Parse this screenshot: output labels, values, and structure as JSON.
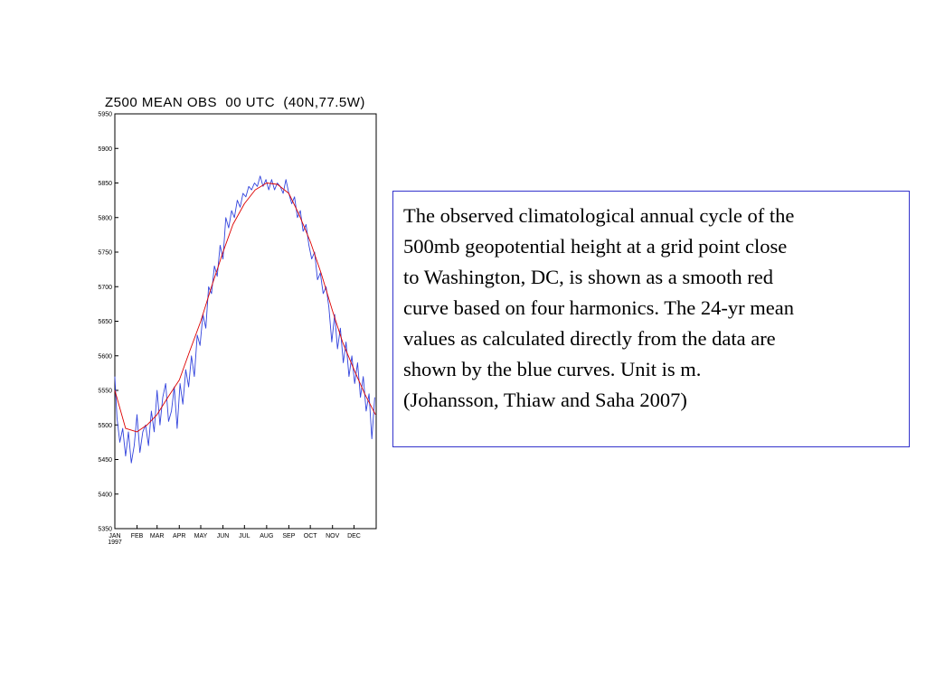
{
  "chart_data": {
    "type": "line",
    "title": "Z500 MEAN OBS  00 UTC  (40N,77.5W)",
    "xlabel": "",
    "ylabel": "",
    "ylim": [
      5350,
      5950
    ],
    "yticks": [
      5350,
      5400,
      5450,
      5500,
      5550,
      5600,
      5650,
      5700,
      5750,
      5800,
      5850,
      5900,
      5950
    ],
    "x_domain": [
      "1997-01-01",
      "1998-01-01"
    ],
    "xtick_labels": [
      "JAN",
      "FEB",
      "MAR",
      "APR",
      "MAY",
      "JUN",
      "JUL",
      "AUG",
      "SEP",
      "OCT",
      "NOV",
      "DEC"
    ],
    "xtick_year": "1997",
    "grid": false,
    "legend": "none",
    "series": [
      {
        "color": "#3344dd",
        "x": [
          "1997-01-01",
          "1997-01-04",
          "1997-01-08",
          "1997-01-12",
          "1997-01-16",
          "1997-01-20",
          "1997-01-24",
          "1997-01-28",
          "1997-02-01",
          "1997-02-05",
          "1997-02-09",
          "1997-02-13",
          "1997-02-17",
          "1997-02-21",
          "1997-02-25",
          "1997-03-01",
          "1997-03-05",
          "1997-03-09",
          "1997-03-13",
          "1997-03-17",
          "1997-03-21",
          "1997-03-25",
          "1997-03-29",
          "1997-04-02",
          "1997-04-06",
          "1997-04-10",
          "1997-04-14",
          "1997-04-18",
          "1997-04-22",
          "1997-04-26",
          "1997-04-30",
          "1997-05-04",
          "1997-05-08",
          "1997-05-12",
          "1997-05-16",
          "1997-05-20",
          "1997-05-24",
          "1997-05-28",
          "1997-06-01",
          "1997-06-05",
          "1997-06-09",
          "1997-06-13",
          "1997-06-17",
          "1997-06-21",
          "1997-06-25",
          "1997-06-29",
          "1997-07-03",
          "1997-07-07",
          "1997-07-11",
          "1997-07-15",
          "1997-07-19",
          "1997-07-23",
          "1997-07-27",
          "1997-07-31",
          "1997-08-04",
          "1997-08-08",
          "1997-08-12",
          "1997-08-16",
          "1997-08-20",
          "1997-08-24",
          "1997-08-28",
          "1997-09-01",
          "1997-09-05",
          "1997-09-09",
          "1997-09-13",
          "1997-09-17",
          "1997-09-21",
          "1997-09-25",
          "1997-09-29",
          "1997-10-03",
          "1997-10-07",
          "1997-10-11",
          "1997-10-15",
          "1997-10-19",
          "1997-10-23",
          "1997-10-27",
          "1997-10-31",
          "1997-11-04",
          "1997-11-08",
          "1997-11-12",
          "1997-11-16",
          "1997-11-20",
          "1997-11-24",
          "1997-11-28",
          "1997-12-02",
          "1997-12-06",
          "1997-12-10",
          "1997-12-14",
          "1997-12-18",
          "1997-12-22",
          "1997-12-26",
          "1997-12-30"
        ],
        "values": [
          5570,
          5510,
          5475,
          5495,
          5455,
          5490,
          5445,
          5470,
          5515,
          5460,
          5490,
          5500,
          5470,
          5520,
          5490,
          5550,
          5500,
          5540,
          5560,
          5505,
          5520,
          5555,
          5495,
          5560,
          5530,
          5580,
          5555,
          5600,
          5570,
          5630,
          5615,
          5660,
          5640,
          5700,
          5690,
          5730,
          5715,
          5760,
          5740,
          5800,
          5785,
          5810,
          5800,
          5825,
          5815,
          5835,
          5830,
          5845,
          5840,
          5850,
          5845,
          5860,
          5845,
          5855,
          5840,
          5855,
          5840,
          5850,
          5845,
          5835,
          5855,
          5835,
          5820,
          5830,
          5800,
          5810,
          5780,
          5790,
          5760,
          5740,
          5750,
          5710,
          5720,
          5690,
          5700,
          5670,
          5620,
          5660,
          5610,
          5640,
          5590,
          5620,
          5570,
          5600,
          5560,
          5590,
          5540,
          5570,
          5520,
          5545,
          5480,
          5540
        ]
      },
      {
        "color": "#dd0000",
        "x": [
          "1997-01-01",
          "1997-01-16",
          "1997-02-01",
          "1997-02-15",
          "1997-03-01",
          "1997-03-16",
          "1997-04-01",
          "1997-04-15",
          "1997-05-01",
          "1997-05-16",
          "1997-06-01",
          "1997-06-15",
          "1997-07-01",
          "1997-07-16",
          "1997-08-01",
          "1997-08-16",
          "1997-09-01",
          "1997-09-15",
          "1997-10-01",
          "1997-10-16",
          "1997-11-01",
          "1997-11-15",
          "1997-12-01",
          "1997-12-16",
          "1997-12-31"
        ],
        "values": [
          5550,
          5495,
          5490,
          5500,
          5515,
          5540,
          5565,
          5605,
          5650,
          5700,
          5750,
          5790,
          5820,
          5840,
          5850,
          5848,
          5835,
          5805,
          5765,
          5720,
          5665,
          5620,
          5580,
          5545,
          5515
        ]
      }
    ]
  },
  "caption": {
    "text": "The observed climatological annual cycle of the\n500mb geopotential height at a grid point close\nto Washington, DC, is shown as a smooth red\ncurve based on four harmonics. The 24-yr mean\nvalues as calculated directly from the data are\nshown by the blue curves. Unit is m.\n(Johansson, Thiaw and Saha  2007)"
  }
}
